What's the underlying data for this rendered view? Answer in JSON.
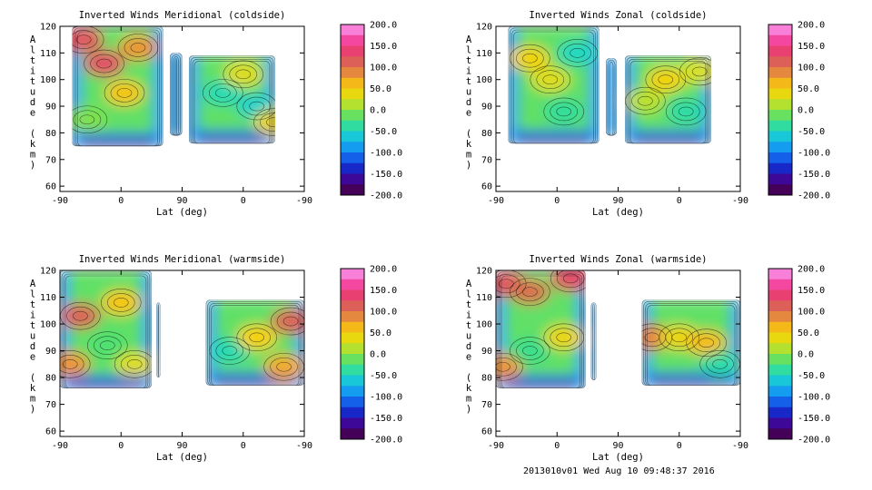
{
  "footer": "2013010v01 Wed Aug 10 09:48:37 2016",
  "chart_data": [
    {
      "type": "heatmap",
      "title": "Inverted Winds Meridional (coldside)",
      "xlabel": "Lat (deg)",
      "ylabel": "Altitude (km)",
      "xticks": [
        "-90",
        "0",
        "90",
        "0",
        "-90"
      ],
      "yticks": [
        "60",
        "70",
        "80",
        "90",
        "100",
        "110",
        "120"
      ],
      "ylim": [
        58,
        120
      ],
      "altitude_range": [
        75,
        120
      ],
      "colorbar": {
        "min": -200,
        "max": 200,
        "ticks": [
          "200.0",
          "150.0",
          "100.0",
          "50.0",
          "0.0",
          "-50.0",
          "-100.0",
          "-150.0",
          "-200.0"
        ]
      },
      "segments": [
        {
          "x0": -72,
          "x1": 62,
          "zmin": 75,
          "zmax": 120
        },
        {
          "x0": 72,
          "x1": 90,
          "zmin": 79,
          "zmax": 110
        },
        {
          "x0": 100,
          "x1": 227,
          "zmin": 76,
          "zmax": 109
        }
      ],
      "features": [
        {
          "x": -25,
          "z": 106,
          "value": 130
        },
        {
          "x": -55,
          "z": 115,
          "value": 120
        },
        {
          "x": 5,
          "z": 95,
          "value": 55
        },
        {
          "x": 25,
          "z": 112,
          "value": 80
        },
        {
          "x": 150,
          "z": 95,
          "value": -45
        },
        {
          "x": 200,
          "z": 90,
          "value": -55
        },
        {
          "x": 180,
          "z": 102,
          "value": 30
        },
        {
          "x": -50,
          "z": 85,
          "value": -5
        },
        {
          "x": 225,
          "z": 84,
          "value": 40
        }
      ]
    },
    {
      "type": "heatmap",
      "title": "Inverted Winds Zonal (coldside)",
      "xlabel": "Lat (deg)",
      "ylabel": "Altitude (km)",
      "xticks": [
        "-90",
        "0",
        "90",
        "0",
        "-90"
      ],
      "yticks": [
        "60",
        "70",
        "80",
        "90",
        "100",
        "110",
        "120"
      ],
      "ylim": [
        58,
        120
      ],
      "altitude_range": [
        75,
        120
      ],
      "colorbar": {
        "min": -200,
        "max": 200,
        "ticks": [
          "200.0",
          "150.0",
          "100.0",
          "50.0",
          "0.0",
          "-50.0",
          "-100.0",
          "-150.0",
          "-200.0"
        ]
      },
      "segments": [
        {
          "x0": -72,
          "x1": 62,
          "zmin": 76,
          "zmax": 120
        },
        {
          "x0": 72,
          "x1": 88,
          "zmin": 79,
          "zmax": 108
        },
        {
          "x0": 100,
          "x1": 227,
          "zmin": 76,
          "zmax": 109
        }
      ],
      "features": [
        {
          "x": -40,
          "z": 108,
          "value": 45
        },
        {
          "x": -10,
          "z": 100,
          "value": 30
        },
        {
          "x": 10,
          "z": 88,
          "value": -35
        },
        {
          "x": 30,
          "z": 110,
          "value": -50
        },
        {
          "x": 160,
          "z": 100,
          "value": 45
        },
        {
          "x": 130,
          "z": 92,
          "value": 15
        },
        {
          "x": 190,
          "z": 88,
          "value": -40
        },
        {
          "x": 210,
          "z": 103,
          "value": 25
        }
      ]
    },
    {
      "type": "heatmap",
      "title": "Inverted Winds Meridional (warmside)",
      "xlabel": "Lat (deg)",
      "ylabel": "Altitude (km)",
      "xticks": [
        "-90",
        "0",
        "90",
        "0",
        "-90"
      ],
      "yticks": [
        "60",
        "70",
        "80",
        "90",
        "100",
        "110",
        "120"
      ],
      "ylim": [
        58,
        120
      ],
      "altitude_range": [
        76,
        120
      ],
      "colorbar": {
        "min": -200,
        "max": 200,
        "ticks": [
          "200.0",
          "150.0",
          "100.0",
          "50.0",
          "0.0",
          "-50.0",
          "-100.0",
          "-150.0",
          "-200.0"
        ]
      },
      "segments": [
        {
          "x0": -90,
          "x1": 45,
          "zmin": 76,
          "zmax": 120
        },
        {
          "x0": 52,
          "x1": 58,
          "zmin": 80,
          "zmax": 108
        },
        {
          "x0": 125,
          "x1": 270,
          "zmin": 77,
          "zmax": 109
        }
      ],
      "features": [
        {
          "x": -60,
          "z": 103,
          "value": 110
        },
        {
          "x": -75,
          "z": 85,
          "value": 80
        },
        {
          "x": 0,
          "z": 108,
          "value": 55
        },
        {
          "x": -20,
          "z": 92,
          "value": -20
        },
        {
          "x": 20,
          "z": 85,
          "value": 30
        },
        {
          "x": 160,
          "z": 90,
          "value": -45
        },
        {
          "x": 200,
          "z": 95,
          "value": 50
        },
        {
          "x": 250,
          "z": 101,
          "value": 110
        },
        {
          "x": 240,
          "z": 84,
          "value": 70
        }
      ]
    },
    {
      "type": "heatmap",
      "title": "Inverted Winds Zonal (warmside)",
      "xlabel": "Lat (deg)",
      "ylabel": "Altitude (km)",
      "xticks": [
        "-90",
        "0",
        "90",
        "0",
        "-90"
      ],
      "yticks": [
        "60",
        "70",
        "80",
        "90",
        "100",
        "110",
        "120"
      ],
      "ylim": [
        58,
        120
      ],
      "altitude_range": [
        76,
        120
      ],
      "colorbar": {
        "min": -200,
        "max": 200,
        "ticks": [
          "200.0",
          "150.0",
          "100.0",
          "50.0",
          "0.0",
          "-50.0",
          "-100.0",
          "-150.0",
          "-200.0"
        ]
      },
      "segments": [
        {
          "x0": -90,
          "x1": 42,
          "zmin": 76,
          "zmax": 120
        },
        {
          "x0": 50,
          "x1": 58,
          "zmin": 79,
          "zmax": 108
        },
        {
          "x0": 125,
          "x1": 270,
          "zmin": 77,
          "zmax": 109
        }
      ],
      "features": [
        {
          "x": -75,
          "z": 115,
          "value": 120
        },
        {
          "x": -40,
          "z": 112,
          "value": 100
        },
        {
          "x": 20,
          "z": 117,
          "value": 130
        },
        {
          "x": -80,
          "z": 84,
          "value": 80
        },
        {
          "x": 10,
          "z": 95,
          "value": 40
        },
        {
          "x": -40,
          "z": 90,
          "value": -30
        },
        {
          "x": 140,
          "z": 95,
          "value": 90
        },
        {
          "x": 180,
          "z": 95,
          "value": 40
        },
        {
          "x": 220,
          "z": 93,
          "value": 60
        },
        {
          "x": 240,
          "z": 85,
          "value": -40
        }
      ]
    }
  ]
}
